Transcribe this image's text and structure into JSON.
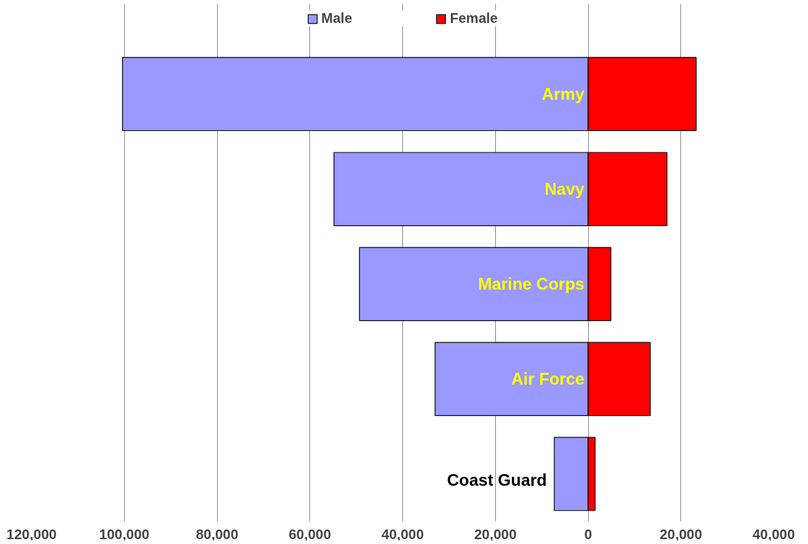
{
  "chart_data": {
    "type": "bar",
    "orientation": "horizontal",
    "categories": [
      "Army",
      "Navy",
      "Marine Corps",
      "Air Force",
      "Coast Guard"
    ],
    "series": [
      {
        "name": "Male",
        "color": "#9999ff",
        "values": [
          -100400,
          -54800,
          -49300,
          -33000,
          -7300
        ]
      },
      {
        "name": "Female",
        "color": "#ff0000",
        "values": [
          23300,
          17000,
          4900,
          13400,
          1500
        ]
      }
    ],
    "xlim": [
      -120000,
      40000
    ],
    "xticks": [
      {
        "value": -120000,
        "label": "120,000"
      },
      {
        "value": -100000,
        "label": "100,000"
      },
      {
        "value": -80000,
        "label": "80,000"
      },
      {
        "value": -60000,
        "label": "60,000"
      },
      {
        "value": -40000,
        "label": "40,000"
      },
      {
        "value": -20000,
        "label": "20,000"
      },
      {
        "value": 0,
        "label": "0"
      },
      {
        "value": 20000,
        "label": "20,000"
      },
      {
        "value": 40000,
        "label": "40,000"
      }
    ],
    "stacked": true,
    "grid": "x",
    "legend": "top"
  }
}
